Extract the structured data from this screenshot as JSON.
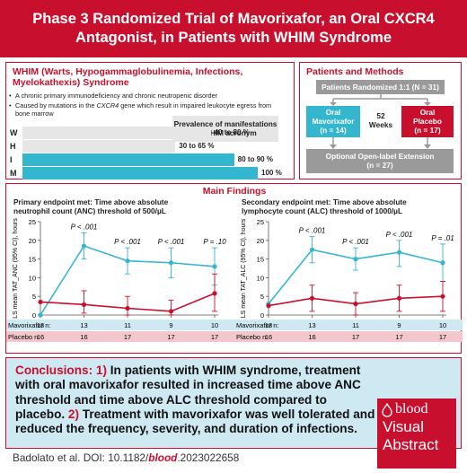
{
  "title": {
    "line1": "Phase 3 Randomized Trial of Mavorixafor, an Oral CXCR4",
    "line2": "Antagonist, in Patients with WHIM Syndrome"
  },
  "whim": {
    "heading": "WHIM (Warts, Hypogammaglobulinemia, Infections, Myelokathexis) Syndrome",
    "bullet1": "A chronic primary immunodeficiency and chronic neutropenic disorder",
    "bullet2_pre": "Caused by mutations in the ",
    "bullet2_gene": "CXCR4",
    "bullet2_post": " gene which result in impaired leukocyte egress from bone marrow",
    "prevalence_title": "Prevalence of manifestations in WHIM acronym",
    "bars": [
      {
        "letter": "W",
        "label": "40 to 80 %",
        "value": 80,
        "color": "#e6e6e6"
      },
      {
        "letter": "H",
        "label": "30 to 65 %",
        "value": 65,
        "color": "#e6e6e6"
      },
      {
        "letter": "I",
        "label": "80 to 90 %",
        "value": 90,
        "color": "#35b6cf"
      },
      {
        "letter": "M",
        "label": "100 %",
        "value": 100,
        "color": "#35b6cf"
      }
    ]
  },
  "methods": {
    "heading": "Patients and Methods",
    "randomized": "Patients Randomized 1:1 (N = 31)",
    "arm1_line1": "Oral",
    "arm1_line2": "Mavorixafor",
    "arm1_line3": "(n = 14)",
    "duration_line1": "52",
    "duration_line2": "Weeks",
    "arm2_line1": "Oral",
    "arm2_line2": "Placebo",
    "arm2_line3": "(n = 17)",
    "extension_line1": "Optional Open-label Extension",
    "extension_line2": "(n = 27)",
    "colors": {
      "mavorixafor": "#35b6cf",
      "placebo": "#c8102e",
      "grey": "#9a9a9a"
    }
  },
  "findings": {
    "heading": "Main Findings",
    "primary_line1": "Primary endpoint met: Time above absolute",
    "primary_line2": "neutrophil count (ANC) threshold of 500/µL",
    "secondary_line1": "Secondary endpoint met: Time above absolute",
    "secondary_line2": "lymphocyte count (ALC) threshold of 1000/µL",
    "week_label": "Week",
    "mav_label": "Mavorixafor n:",
    "pbo_label": "Placebo n:"
  },
  "chart_data": [
    {
      "type": "line",
      "ylabel": "LS mean TAT_ANC (95% CI), hours",
      "xlabel": "Week",
      "x": [
        0,
        13,
        26,
        39,
        52
      ],
      "ylim": [
        0,
        25
      ],
      "series": [
        {
          "name": "Mavorixafor",
          "color": "#35b6cf",
          "values": [
            0,
            18.5,
            14.5,
            14.0,
            13.0
          ],
          "ci": [
            [
              0,
              0
            ],
            [
              15,
              22
            ],
            [
              11,
              18
            ],
            [
              10,
              18
            ],
            [
              8,
              18
            ]
          ]
        },
        {
          "name": "Placebo",
          "color": "#c8102e",
          "values": [
            3.5,
            2.8,
            1.8,
            1.0,
            5.8
          ],
          "ci": [
            [
              3.5,
              3.5
            ],
            [
              0.5,
              6.5
            ],
            [
              0,
              5
            ],
            [
              0,
              4
            ],
            [
              1,
              11
            ]
          ]
        }
      ],
      "annotations": [
        "P < .001",
        "P < .001",
        "P < .001",
        "P = .10"
      ],
      "n_mavorixafor": [
        "13",
        "13",
        "11",
        "9",
        "10"
      ],
      "n_placebo": [
        "16",
        "16",
        "17",
        "17",
        "17"
      ]
    },
    {
      "type": "line",
      "ylabel": "LS mean TAT_ALC (95% CI), hours",
      "xlabel": "Week",
      "x": [
        0,
        13,
        26,
        39,
        52
      ],
      "ylim": [
        0,
        25
      ],
      "series": [
        {
          "name": "Mavorixafor",
          "color": "#35b6cf",
          "values": [
            3.0,
            17.5,
            15.0,
            16.8,
            14.0
          ],
          "ci": [
            [
              3,
              3
            ],
            [
              14,
              21
            ],
            [
              12,
              18
            ],
            [
              13,
              20
            ],
            [
              9,
              19
            ]
          ]
        },
        {
          "name": "Placebo",
          "color": "#c8102e",
          "values": [
            2.5,
            4.5,
            3.0,
            4.5,
            5.0
          ],
          "ci": [
            [
              2.5,
              2.5
            ],
            [
              1,
              8
            ],
            [
              0,
              6
            ],
            [
              1,
              8
            ],
            [
              1,
              9
            ]
          ]
        }
      ],
      "annotations": [
        "P < .001",
        "P < .001",
        "P < .001",
        "P = .01"
      ],
      "n_mavorixafor": [
        "13",
        "13",
        "11",
        "9",
        "10"
      ],
      "n_placebo": [
        "16",
        "16",
        "17",
        "17",
        "17"
      ]
    }
  ],
  "conclusion": {
    "label": "Conclusions:",
    "n1": "1)",
    "text1": " In patients with WHIM syndrome, treatment with oral mavorixafor resulted in increased time above ANC threshold and time above ALC threshold compared to placebo. ",
    "n2": "2)",
    "text2": " Treatment with mavorixafor was well tolerated and reduced the frequency, severity, and duration of infections."
  },
  "logo": {
    "brand": "blood",
    "line1": "Visual",
    "line2": "Abstract"
  },
  "citation": {
    "pre": "Badolato et al. DOI: 10.1182/",
    "journal": "blood",
    "post": ".2023022658"
  }
}
